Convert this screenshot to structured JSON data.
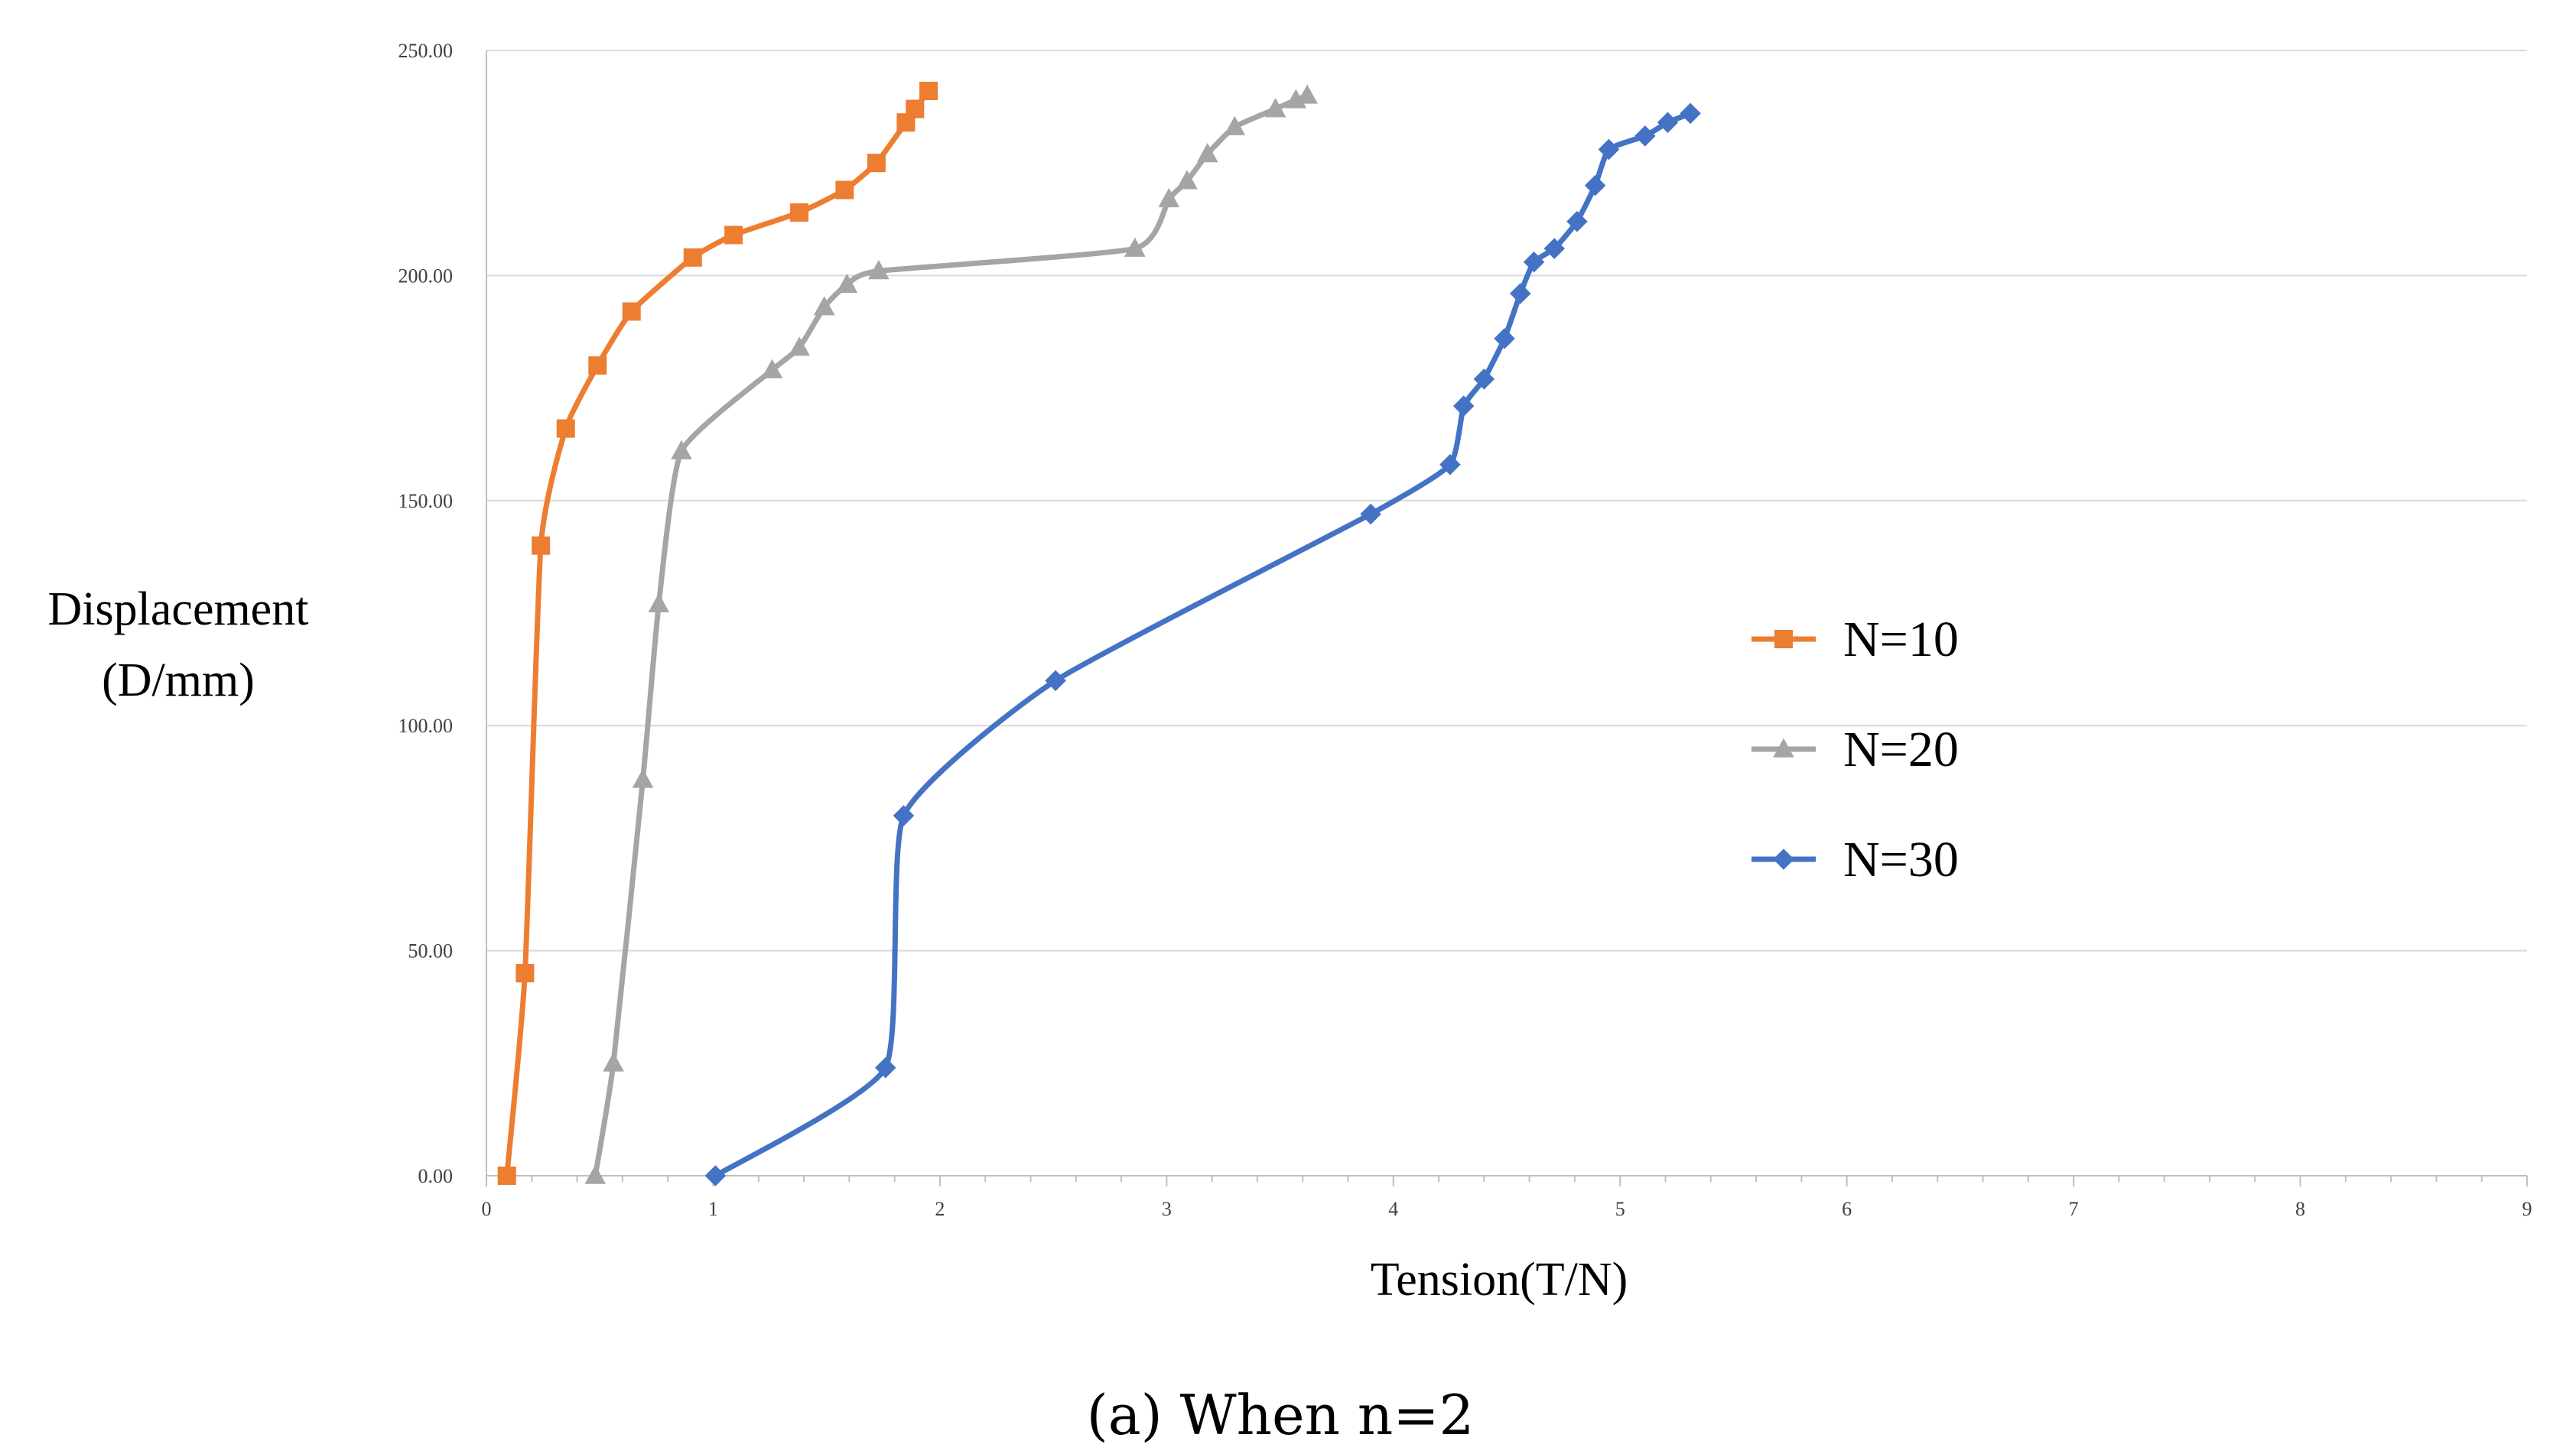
{
  "chart_data": {
    "type": "line",
    "title": "",
    "caption": "(a) When n=2",
    "xlabel": "Tension(T/N)",
    "ylabel_lines": [
      "Displacement",
      "(D/mm)"
    ],
    "xlim": [
      0,
      9
    ],
    "ylim": [
      0,
      250
    ],
    "x_ticks": [
      "0",
      "1",
      "2",
      "3",
      "4",
      "5",
      "6",
      "7",
      "8",
      "9"
    ],
    "y_ticks": [
      "0.00",
      "50.00",
      "100.00",
      "150.00",
      "200.00",
      "250.00"
    ],
    "x_tick_values": [
      0,
      1,
      2,
      3,
      4,
      5,
      6,
      7,
      8,
      9
    ],
    "y_tick_values": [
      0,
      50,
      100,
      150,
      200,
      250
    ],
    "grid": "horizontal",
    "legend_position": "right",
    "series": [
      {
        "name": "N=10",
        "color": "#ED7D31",
        "marker": "square",
        "points": [
          [
            0.09,
            0
          ],
          [
            0.17,
            45
          ],
          [
            0.24,
            140
          ],
          [
            0.35,
            166
          ],
          [
            0.49,
            180
          ],
          [
            0.64,
            192
          ],
          [
            0.91,
            204
          ],
          [
            1.09,
            209
          ],
          [
            1.38,
            214
          ],
          [
            1.58,
            219
          ],
          [
            1.72,
            225
          ],
          [
            1.85,
            234
          ],
          [
            1.89,
            237
          ],
          [
            1.95,
            241
          ]
        ]
      },
      {
        "name": "N=20",
        "color": "#A5A5A5",
        "marker": "triangle",
        "points": [
          [
            0.48,
            0
          ],
          [
            0.56,
            25
          ],
          [
            0.69,
            88
          ],
          [
            0.76,
            127
          ],
          [
            0.86,
            161
          ],
          [
            1.26,
            179
          ],
          [
            1.38,
            184
          ],
          [
            1.49,
            193
          ],
          [
            1.59,
            198
          ],
          [
            1.73,
            201
          ],
          [
            2.86,
            206
          ],
          [
            3.01,
            217
          ],
          [
            3.09,
            221
          ],
          [
            3.18,
            227
          ],
          [
            3.3,
            233
          ],
          [
            3.48,
            237
          ],
          [
            3.57,
            239
          ],
          [
            3.62,
            240
          ]
        ]
      },
      {
        "name": "N=30",
        "color": "#4472C4",
        "marker": "diamond",
        "points": [
          [
            1.01,
            0
          ],
          [
            1.76,
            24
          ],
          [
            1.84,
            80
          ],
          [
            2.51,
            110
          ],
          [
            3.9,
            147
          ],
          [
            4.25,
            158
          ],
          [
            4.31,
            171
          ],
          [
            4.4,
            177
          ],
          [
            4.49,
            186
          ],
          [
            4.56,
            196
          ],
          [
            4.62,
            203
          ],
          [
            4.71,
            206
          ],
          [
            4.81,
            212
          ],
          [
            4.89,
            220
          ],
          [
            4.95,
            228
          ],
          [
            5.11,
            231
          ],
          [
            5.21,
            234
          ],
          [
            5.31,
            236
          ]
        ]
      }
    ]
  }
}
